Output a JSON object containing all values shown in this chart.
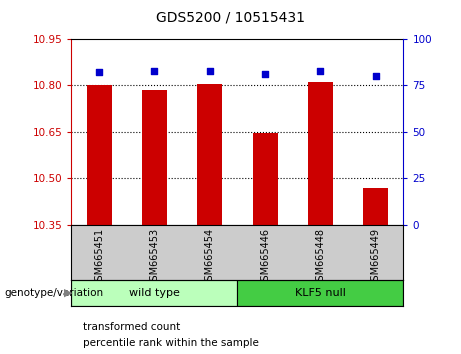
{
  "title": "GDS5200 / 10515431",
  "categories": [
    "GSM665451",
    "GSM665453",
    "GSM665454",
    "GSM665446",
    "GSM665448",
    "GSM665449"
  ],
  "bar_values": [
    10.8,
    10.785,
    10.805,
    10.645,
    10.81,
    10.47
  ],
  "dot_values": [
    82,
    83,
    83,
    81,
    83,
    80
  ],
  "ylim_left": [
    10.35,
    10.95
  ],
  "ylim_right": [
    0,
    100
  ],
  "yticks_left": [
    10.35,
    10.5,
    10.65,
    10.8,
    10.95
  ],
  "yticks_right": [
    0,
    25,
    50,
    75,
    100
  ],
  "bar_color": "#cc0000",
  "dot_color": "#0000cc",
  "bar_bottom": 10.35,
  "grid_lines": [
    10.5,
    10.65,
    10.8
  ],
  "group1_label": "wild type",
  "group2_label": "KLF5 null",
  "group1_color": "#bbffbb",
  "group2_color": "#44cc44",
  "genotype_label": "genotype/variation",
  "legend_bar_label": "transformed count",
  "legend_dot_label": "percentile rank within the sample",
  "tick_label_color_left": "#cc0000",
  "tick_label_color_right": "#0000cc",
  "xlabel_area_color": "#cccccc",
  "bar_width": 0.45
}
